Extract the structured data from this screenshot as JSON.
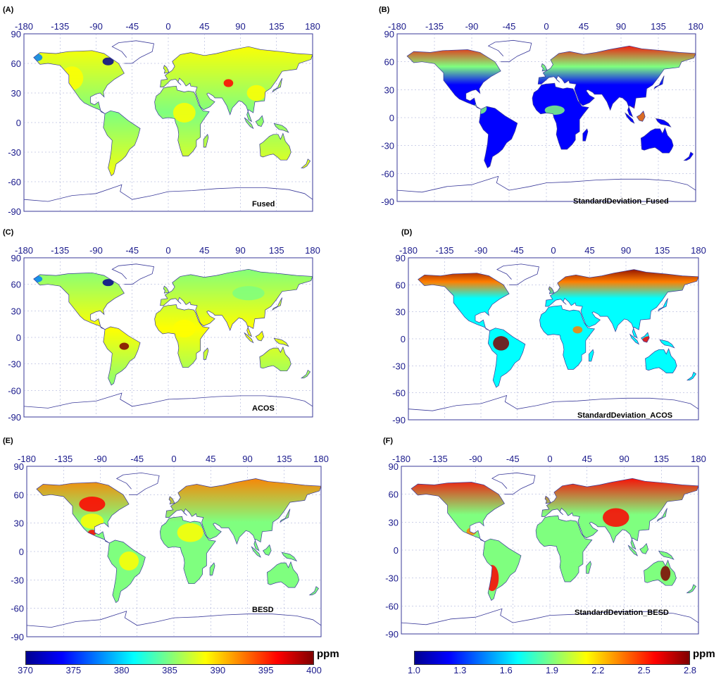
{
  "chart_data": [
    {
      "type": "map",
      "panel": "(A)",
      "title": "Fused",
      "scale": "mean",
      "xticks": [
        "-180",
        "-135",
        "-90",
        "-45",
        "0",
        "45",
        "90",
        "135",
        "180"
      ],
      "yticks": [
        "90",
        "60",
        "30",
        "0",
        "-30",
        "-60",
        "-90"
      ],
      "xlim": [
        -180,
        180
      ],
      "ylim": [
        -90,
        90
      ]
    },
    {
      "type": "map",
      "panel": "(B)",
      "title": "StandardDeviation_Fused",
      "scale": "std",
      "xticks": [
        "-180",
        "-135",
        "-90",
        "-45",
        "0",
        "45",
        "90",
        "135",
        "180"
      ],
      "yticks": [
        "90",
        "60",
        "30",
        "0",
        "-30",
        "-60",
        "-90"
      ],
      "xlim": [
        -180,
        180
      ],
      "ylim": [
        -90,
        90
      ]
    },
    {
      "type": "map",
      "panel": "(C)",
      "title": "ACOS",
      "scale": "mean",
      "xticks": [
        "-180",
        "-135",
        "-90",
        "-45",
        "0",
        "45",
        "90",
        "135",
        "180"
      ],
      "yticks": [
        "90",
        "60",
        "30",
        "0",
        "-30",
        "-60",
        "-90"
      ],
      "xlim": [
        -180,
        180
      ],
      "ylim": [
        -90,
        90
      ]
    },
    {
      "type": "map",
      "panel": "(D)",
      "title": "StandardDeviation_ACOS",
      "scale": "std",
      "xticks": [
        "-180",
        "-135",
        "-90",
        "-45",
        "0",
        "45",
        "90",
        "135",
        "180"
      ],
      "yticks": [
        "90",
        "60",
        "30",
        "0",
        "-30",
        "-60",
        "-90"
      ],
      "xlim": [
        -180,
        180
      ],
      "ylim": [
        -90,
        90
      ]
    },
    {
      "type": "map",
      "panel": "(E)",
      "title": "BESD",
      "scale": "mean",
      "xticks": [
        "-180",
        "-135",
        "-90",
        "-45",
        "0",
        "45",
        "90",
        "135",
        "180"
      ],
      "yticks": [
        "90",
        "60",
        "30",
        "0",
        "-30",
        "-60",
        "-90"
      ],
      "xlim": [
        -180,
        180
      ],
      "ylim": [
        -90,
        90
      ]
    },
    {
      "type": "map",
      "panel": "(F)",
      "title": "StandardDeviation_BESD",
      "scale": "std",
      "xticks": [
        "-180",
        "-135",
        "-90",
        "-45",
        "0",
        "45",
        "90",
        "135",
        "180"
      ],
      "yticks": [
        "90",
        "60",
        "30",
        "0",
        "-30",
        "-60",
        "-90"
      ],
      "xlim": [
        -180,
        180
      ],
      "ylim": [
        -90,
        90
      ]
    }
  ],
  "colorbars": {
    "mean": {
      "unit": "ppm",
      "labels": [
        "370",
        "375",
        "380",
        "385",
        "390",
        "395",
        "400"
      ],
      "range": [
        370,
        400
      ]
    },
    "std": {
      "unit": "ppm",
      "labels": [
        "1.0",
        "1.3",
        "1.6",
        "1.9",
        "2.2",
        "2.5",
        "2.8"
      ],
      "range": [
        1.0,
        2.8
      ]
    }
  },
  "colors": {
    "axis": "#1a1a8c",
    "coastline": "#3a3a9a",
    "grid": "#9aa0d0",
    "jet": [
      "#00008f",
      "#0000ff",
      "#007fff",
      "#00ffff",
      "#7fff7f",
      "#ffff00",
      "#ff7f00",
      "#ff0000",
      "#7f0000"
    ]
  }
}
